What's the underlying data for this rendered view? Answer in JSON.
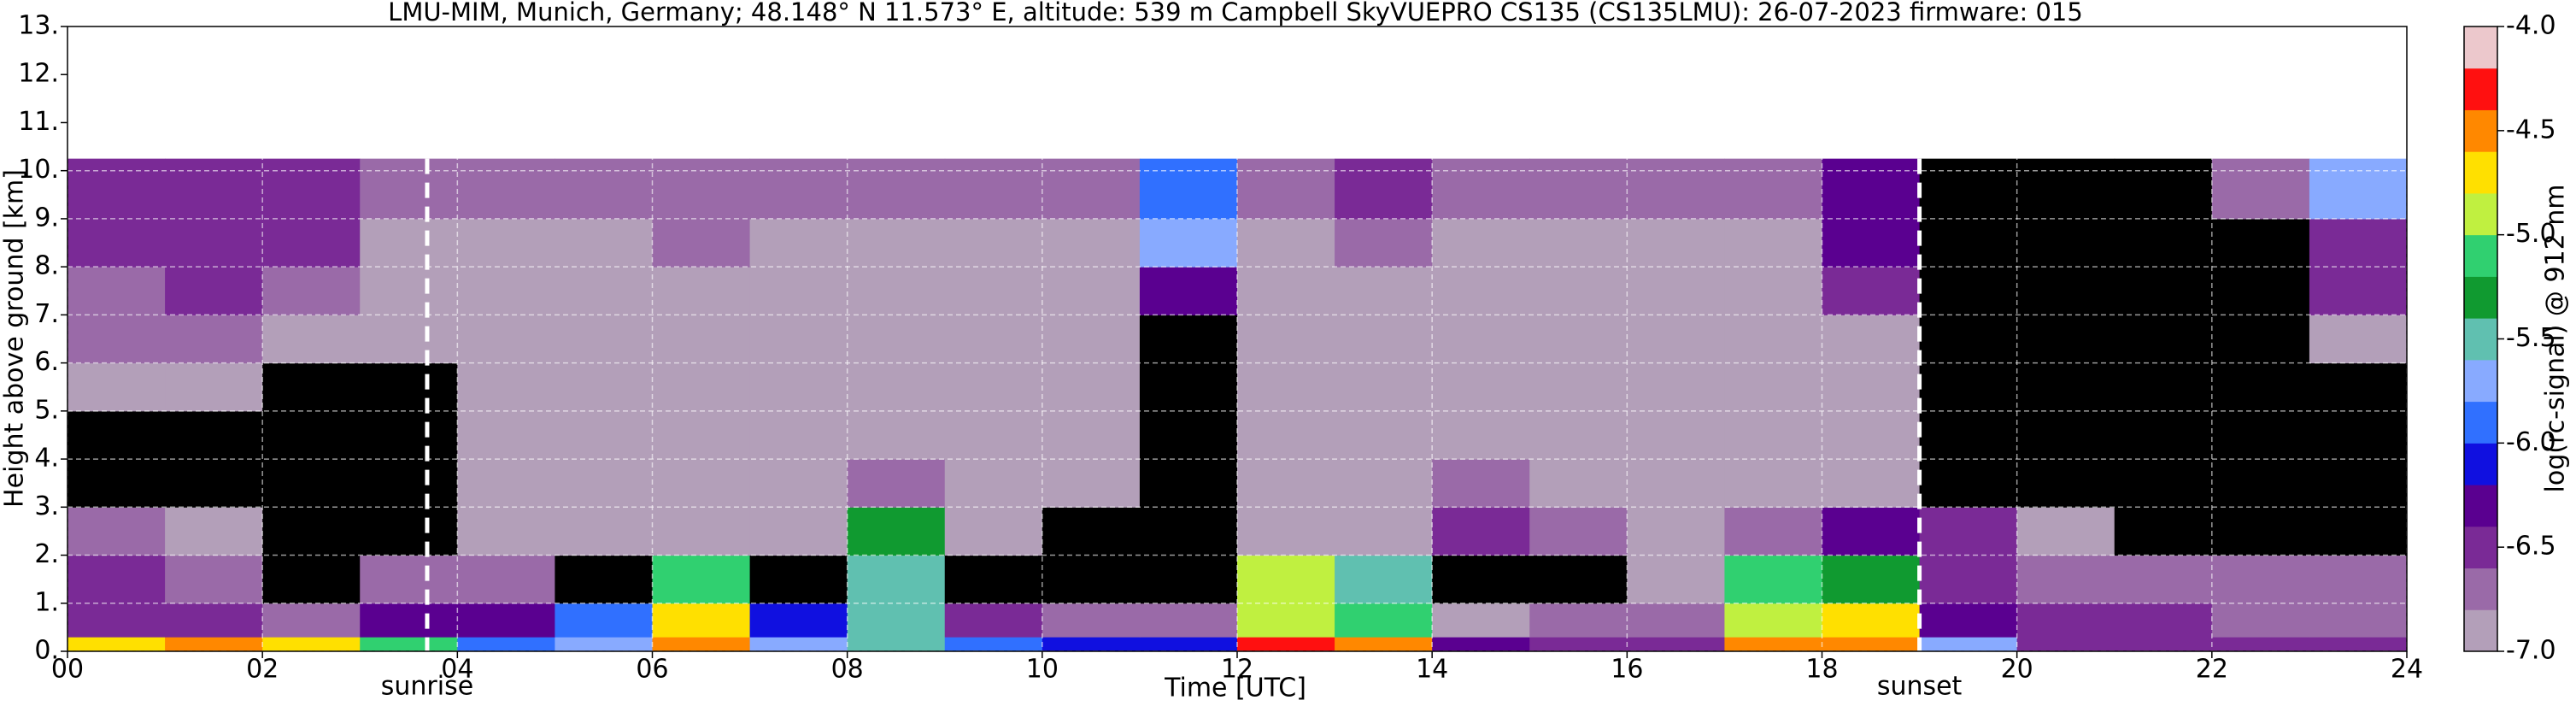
{
  "chart_data": {
    "type": "heatmap",
    "title": "LMU-MIM, Munich, Germany; 48.148° N 11.573° E, altitude: 539 m    Campbell SkyVUEPRO CS135 (CS135LMU): 26-07-2023    firmware: 015",
    "xlabel": "Time [UTC]",
    "ylabel": "Height above ground [km]",
    "xlim": [
      0,
      24
    ],
    "ylim": [
      0,
      13
    ],
    "xticks": [
      {
        "value": 0,
        "label": "00"
      },
      {
        "value": 2,
        "label": "02"
      },
      {
        "value": 4,
        "label": "04"
      },
      {
        "value": 6,
        "label": "06"
      },
      {
        "value": 8,
        "label": "08"
      },
      10,
      12,
      14,
      16,
      18,
      20,
      22,
      24
    ],
    "yticks": [
      {
        "value": 0,
        "label": "0."
      },
      {
        "value": 1,
        "label": "1."
      },
      {
        "value": 2,
        "label": "2."
      },
      {
        "value": 3,
        "label": "3."
      },
      {
        "value": 4,
        "label": "4."
      },
      {
        "value": 5,
        "label": "5."
      },
      {
        "value": 6,
        "label": "6."
      },
      {
        "value": 7,
        "label": "7."
      },
      {
        "value": 8,
        "label": "8."
      },
      {
        "value": 9,
        "label": "9."
      },
      {
        "value": 10,
        "label": "10."
      },
      {
        "value": 11,
        "label": "11."
      },
      {
        "value": 12,
        "label": "12."
      },
      {
        "value": 13,
        "label": "13."
      }
    ],
    "grid": true,
    "xbins": [
      0,
      1,
      2,
      3,
      4,
      5,
      6,
      7,
      8,
      9,
      10,
      11,
      12,
      13,
      14,
      15,
      16,
      17,
      18,
      19,
      20,
      21,
      22,
      23,
      24
    ],
    "ybins": [
      0,
      0.3,
      1,
      2,
      3,
      4,
      5,
      6,
      7,
      8,
      9,
      10.25
    ],
    "z": [
      [
        -4.7,
        -4.6,
        -4.7,
        -5.2,
        -5.9,
        -5.8,
        -4.6,
        -5.7,
        -5.4,
        -6.0,
        -6.1,
        -6.1,
        -4.3,
        -4.6,
        -6.3,
        -6.4,
        -6.5,
        -4.6,
        -4.4,
        -5.8,
        -6.5,
        -6.5,
        -6.6,
        -6.6
      ],
      [
        -6.4,
        -6.6,
        -6.7,
        -6.3,
        -6.2,
        -6.0,
        -4.8,
        -6.1,
        -5.6,
        -6.6,
        -6.8,
        -6.8,
        -4.9,
        -5.2,
        -6.9,
        -6.8,
        -6.7,
        -5.0,
        -4.7,
        -6.3,
        -6.6,
        -6.6,
        -6.7,
        -6.7
      ],
      [
        -6.6,
        -6.7,
        -7.3,
        -6.8,
        -6.7,
        -7.1,
        -5.2,
        -7.1,
        -5.4,
        -7.2,
        -7.3,
        -7.3,
        -5.0,
        -5.4,
        -7.2,
        -7.2,
        -7.0,
        -5.2,
        -5.3,
        -6.6,
        -6.7,
        -6.8,
        -6.8,
        -6.8
      ],
      [
        -6.8,
        -6.9,
        -7.3,
        -7.2,
        -6.9,
        -7.0,
        -7.0,
        -6.9,
        -5.3,
        -7.0,
        -7.1,
        -7.2,
        -7.0,
        -6.9,
        -6.5,
        -6.8,
        -6.9,
        -6.8,
        -6.2,
        -6.6,
        -7.0,
        -7.2,
        -7.3,
        -7.3
      ],
      [
        -7.3,
        -7.2,
        -7.4,
        -7.3,
        -6.9,
        -6.9,
        -6.9,
        -6.9,
        -6.8,
        -6.9,
        -6.9,
        -7.3,
        -7.0,
        -6.9,
        -6.8,
        -6.9,
        -6.9,
        -6.9,
        -6.9,
        -7.3,
        -7.4,
        -7.4,
        -7.4,
        -7.4
      ],
      [
        -7.2,
        -7.1,
        -7.3,
        -7.2,
        -6.9,
        -6.9,
        -6.9,
        -6.9,
        -6.9,
        -6.9,
        -6.9,
        -7.2,
        -6.9,
        -6.9,
        -6.9,
        -6.9,
        -6.9,
        -6.9,
        -7.0,
        -7.3,
        -7.4,
        -7.4,
        -7.4,
        -7.4
      ],
      [
        -7.0,
        -7.0,
        -7.1,
        -7.1,
        -6.9,
        -6.9,
        -6.9,
        -6.9,
        -6.9,
        -6.9,
        -6.9,
        -7.2,
        -6.9,
        -6.9,
        -6.9,
        -6.9,
        -6.9,
        -6.9,
        -7.0,
        -7.3,
        -7.4,
        -7.4,
        -7.4,
        -7.4
      ],
      [
        -6.8,
        -6.8,
        -6.9,
        -7.0,
        -6.9,
        -6.9,
        -6.9,
        -6.9,
        -6.9,
        -6.9,
        -6.9,
        -7.1,
        -6.9,
        -6.9,
        -6.9,
        -6.9,
        -6.9,
        -6.9,
        -7.0,
        -7.3,
        -7.4,
        -7.4,
        -7.3,
        -6.9
      ],
      [
        -6.7,
        -6.6,
        -6.7,
        -6.9,
        -6.9,
        -6.9,
        -6.9,
        -6.9,
        -6.9,
        -6.9,
        -6.9,
        -6.2,
        -6.9,
        -6.9,
        -6.9,
        -6.9,
        -6.9,
        -6.9,
        -6.5,
        -7.2,
        -7.3,
        -7.3,
        -7.2,
        -6.6
      ],
      [
        -6.5,
        -6.4,
        -6.6,
        -6.9,
        -6.9,
        -6.9,
        -6.8,
        -6.9,
        -6.9,
        -6.9,
        -6.9,
        -5.8,
        -6.9,
        -6.8,
        -6.9,
        -6.9,
        -6.9,
        -6.9,
        -6.3,
        -7.2,
        -7.3,
        -7.3,
        -7.2,
        -6.5
      ],
      [
        -6.5,
        -6.5,
        -6.6,
        -6.8,
        -6.8,
        -6.8,
        -6.8,
        -6.8,
        -6.8,
        -6.8,
        -6.8,
        -6.0,
        -6.8,
        -6.6,
        -6.8,
        -6.8,
        -6.8,
        -6.8,
        -6.2,
        -7.2,
        -7.3,
        -7.3,
        -6.8,
        -5.7
      ]
    ],
    "colorbar": {
      "label": "log(rc-signal) @ 912 nm",
      "lim": [
        -7,
        -4
      ],
      "ticks": [
        {
          "value": -4,
          "label": "-4.0"
        },
        {
          "value": -4.5,
          "label": "-4.5"
        },
        {
          "value": -5,
          "label": "-5.0"
        },
        {
          "value": -5.5,
          "label": "-5.5"
        },
        {
          "value": -6,
          "label": "-6.0"
        },
        {
          "value": -6.5,
          "label": "-6.5"
        },
        {
          "value": -7,
          "label": "-7.0"
        }
      ],
      "colors": [
        "#b39fb9",
        "#9a6aa8",
        "#7a2a96",
        "#5a0090",
        "#1010e0",
        "#3070ff",
        "#88aaff",
        "#60c0b0",
        "#109a30",
        "#30d070",
        "#c0f040",
        "#ffe000",
        "#ff8800",
        "#ff1010",
        "#ecc8cc"
      ],
      "under_color": "#000000"
    },
    "annotations": [
      {
        "text": "sunrise",
        "x": 3.69
      },
      {
        "text": "sunset",
        "x": 19.0
      }
    ]
  }
}
